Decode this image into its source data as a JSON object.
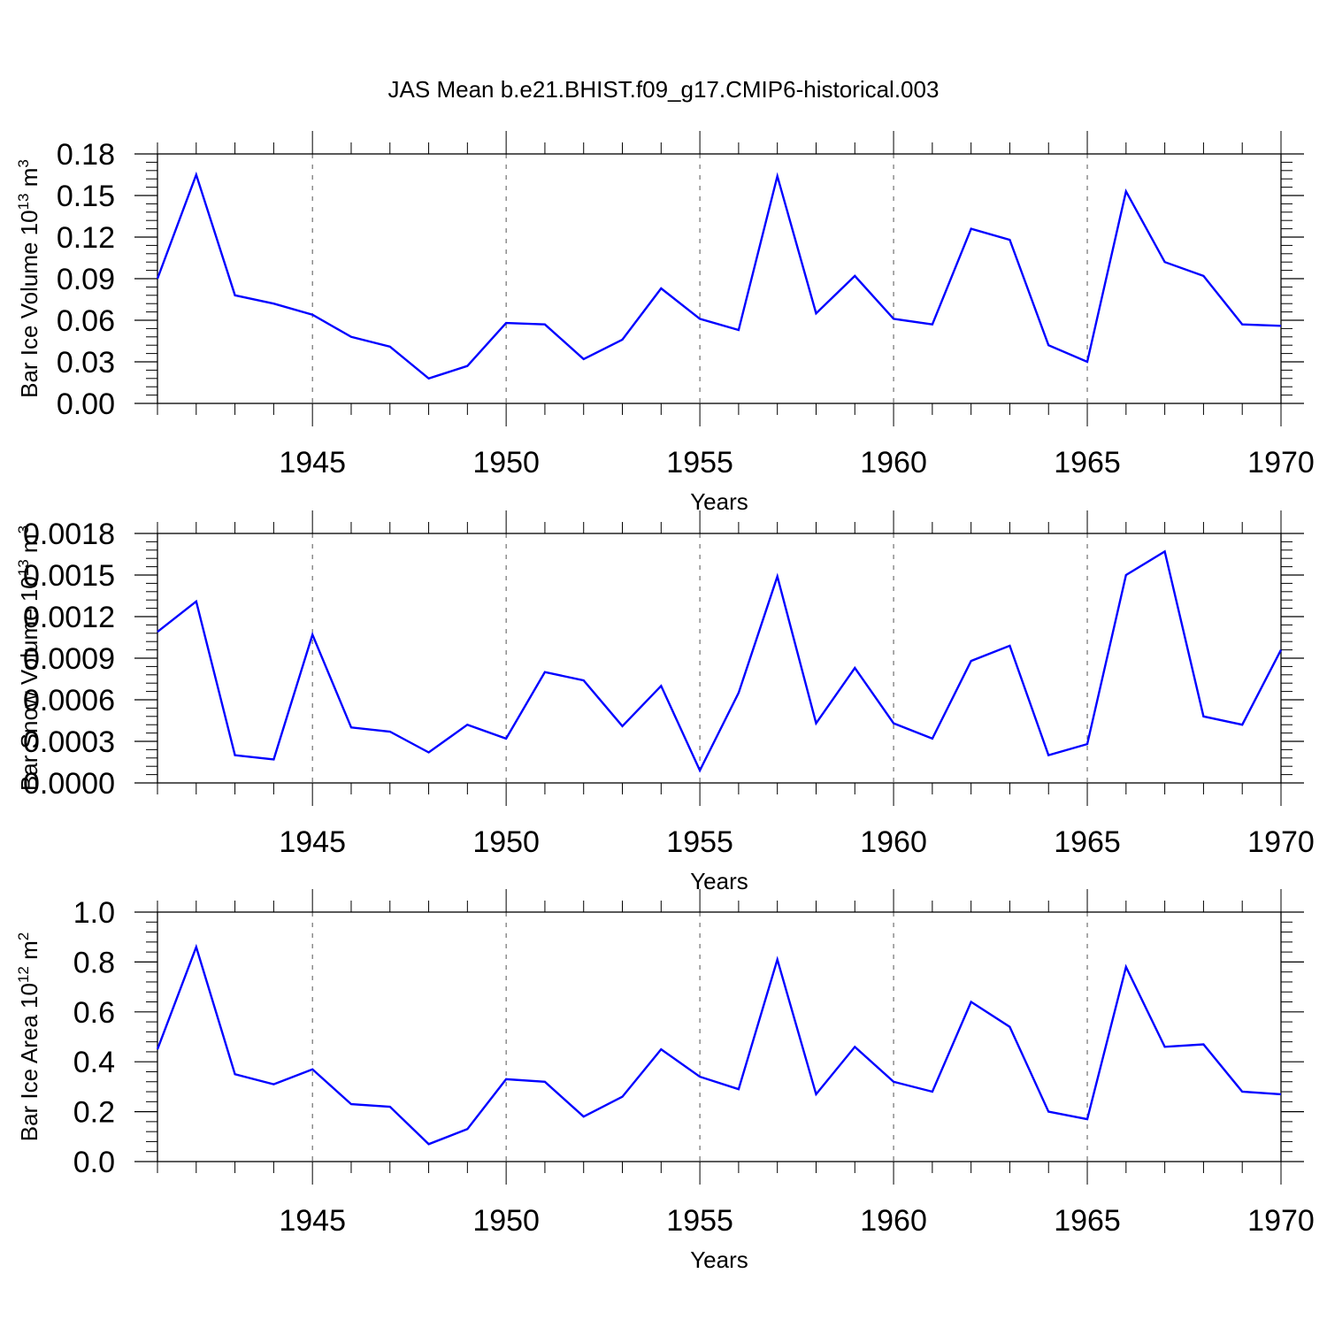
{
  "title": "JAS Mean b.e21.BHIST.f09_g17.CMIP6-historical.003",
  "chart_data": [
    {
      "type": "line",
      "ylabel_parts": [
        "Bar Ice Volume 10",
        "13",
        " m",
        "3"
      ],
      "xlabel": "Years",
      "x": [
        1941,
        1942,
        1943,
        1944,
        1945,
        1946,
        1947,
        1948,
        1949,
        1950,
        1951,
        1952,
        1953,
        1954,
        1955,
        1956,
        1957,
        1958,
        1959,
        1960,
        1961,
        1962,
        1963,
        1964,
        1965,
        1966,
        1967,
        1968,
        1969,
        1970
      ],
      "values": [
        0.09,
        0.165,
        0.078,
        0.072,
        0.064,
        0.048,
        0.041,
        0.018,
        0.027,
        0.058,
        0.057,
        0.032,
        0.046,
        0.083,
        0.061,
        0.053,
        0.164,
        0.065,
        0.092,
        0.061,
        0.057,
        0.126,
        0.118,
        0.042,
        0.03,
        0.153,
        0.102,
        0.092,
        0.057,
        0.056
      ],
      "xlim": [
        1941,
        1970
      ],
      "ylim": [
        0,
        0.18
      ],
      "yticks": [
        "0.00",
        "0.03",
        "0.06",
        "0.09",
        "0.12",
        "0.15",
        "0.18"
      ],
      "xticks": [
        "1945",
        "1950",
        "1955",
        "1960",
        "1965",
        "1970"
      ],
      "line_color": "#0000ff"
    },
    {
      "type": "line",
      "ylabel_parts": [
        "Bar Snow Volume 10",
        "13",
        " m",
        "3"
      ],
      "xlabel": "Years",
      "x": [
        1941,
        1942,
        1943,
        1944,
        1945,
        1946,
        1947,
        1948,
        1949,
        1950,
        1951,
        1952,
        1953,
        1954,
        1955,
        1956,
        1957,
        1958,
        1959,
        1960,
        1961,
        1962,
        1963,
        1964,
        1965,
        1966,
        1967,
        1968,
        1969,
        1970
      ],
      "values": [
        0.00109,
        0.00131,
        0.0002,
        0.00017,
        0.00107,
        0.0004,
        0.00037,
        0.00022,
        0.00042,
        0.00032,
        0.0008,
        0.00074,
        0.00041,
        0.0007,
        9e-05,
        0.00065,
        0.00149,
        0.00043,
        0.00083,
        0.00043,
        0.00032,
        0.00088,
        0.00099,
        0.0002,
        0.00028,
        0.0015,
        0.00167,
        0.00048,
        0.00042,
        0.00096
      ],
      "xlim": [
        1941,
        1970
      ],
      "ylim": [
        0,
        0.0018
      ],
      "yticks": [
        "0.0000",
        "0.0003",
        "0.0006",
        "0.0009",
        "0.0012",
        "0.0015",
        "0.0018"
      ],
      "xticks": [
        "1945",
        "1950",
        "1955",
        "1960",
        "1965",
        "1970"
      ],
      "line_color": "#0000ff"
    },
    {
      "type": "line",
      "ylabel_parts": [
        "Bar Ice Area 10",
        "12",
        " m",
        "2"
      ],
      "xlabel": "Years",
      "x": [
        1941,
        1942,
        1943,
        1944,
        1945,
        1946,
        1947,
        1948,
        1949,
        1950,
        1951,
        1952,
        1953,
        1954,
        1955,
        1956,
        1957,
        1958,
        1959,
        1960,
        1961,
        1962,
        1963,
        1964,
        1965,
        1966,
        1967,
        1968,
        1969,
        1970
      ],
      "values": [
        0.45,
        0.86,
        0.35,
        0.31,
        0.37,
        0.23,
        0.22,
        0.07,
        0.13,
        0.33,
        0.32,
        0.18,
        0.26,
        0.45,
        0.34,
        0.29,
        0.81,
        0.27,
        0.46,
        0.32,
        0.28,
        0.64,
        0.54,
        0.2,
        0.17,
        0.78,
        0.46,
        0.47,
        0.28,
        0.27
      ],
      "xlim": [
        1941,
        1970
      ],
      "ylim": [
        0,
        1.0
      ],
      "yticks": [
        "0.0",
        "0.2",
        "0.4",
        "0.6",
        "0.8",
        "1.0"
      ],
      "xticks": [
        "1945",
        "1950",
        "1955",
        "1960",
        "1965",
        "1970"
      ],
      "line_color": "#0000ff"
    }
  ]
}
